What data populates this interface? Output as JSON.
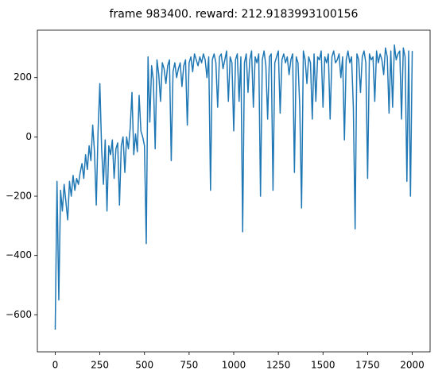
{
  "chart_data": {
    "type": "line",
    "title": "frame 983400. reward: 212.9183993100156",
    "x": [
      0,
      10,
      20,
      30,
      40,
      50,
      60,
      70,
      80,
      90,
      100,
      110,
      120,
      130,
      140,
      150,
      160,
      170,
      180,
      190,
      200,
      210,
      220,
      230,
      240,
      250,
      260,
      270,
      280,
      290,
      300,
      310,
      320,
      330,
      340,
      350,
      360,
      370,
      380,
      390,
      400,
      410,
      420,
      430,
      440,
      450,
      460,
      470,
      480,
      490,
      500,
      510,
      520,
      530,
      540,
      550,
      560,
      570,
      580,
      590,
      600,
      610,
      620,
      630,
      640,
      650,
      660,
      670,
      680,
      690,
      700,
      710,
      720,
      730,
      740,
      750,
      760,
      770,
      780,
      790,
      800,
      810,
      820,
      830,
      840,
      850,
      860,
      870,
      880,
      890,
      900,
      910,
      920,
      930,
      940,
      950,
      960,
      970,
      980,
      990,
      1000,
      1010,
      1020,
      1030,
      1040,
      1050,
      1060,
      1070,
      1080,
      1090,
      1100,
      1110,
      1120,
      1130,
      1140,
      1150,
      1160,
      1170,
      1180,
      1190,
      1200,
      1210,
      1220,
      1230,
      1240,
      1250,
      1260,
      1270,
      1280,
      1290,
      1300,
      1310,
      1320,
      1330,
      1340,
      1350,
      1360,
      1370,
      1380,
      1390,
      1400,
      1410,
      1420,
      1430,
      1440,
      1450,
      1460,
      1470,
      1480,
      1490,
      1500,
      1510,
      1520,
      1530,
      1540,
      1550,
      1560,
      1570,
      1580,
      1590,
      1600,
      1610,
      1620,
      1630,
      1640,
      1650,
      1660,
      1670,
      1680,
      1690,
      1700,
      1710,
      1720,
      1730,
      1740,
      1750,
      1760,
      1770,
      1780,
      1790,
      1800,
      1810,
      1820,
      1830,
      1840,
      1850,
      1860,
      1870,
      1880,
      1890,
      1900,
      1910,
      1920,
      1930,
      1940,
      1950,
      1960,
      1970,
      1980,
      1990,
      2000
    ],
    "series": [
      {
        "color": "#1f77b4",
        "values": [
          -650,
          -150,
          -550,
          -180,
          -250,
          -160,
          -220,
          -280,
          -150,
          -200,
          -130,
          -180,
          -140,
          -160,
          -120,
          -90,
          -140,
          -60,
          -110,
          -30,
          -80,
          40,
          -50,
          -230,
          20,
          180,
          -40,
          -160,
          -10,
          -250,
          -30,
          -60,
          -10,
          -140,
          -40,
          -20,
          -230,
          -30,
          0,
          -120,
          0,
          -40,
          30,
          150,
          -60,
          10,
          -50,
          140,
          20,
          0,
          -30,
          -360,
          270,
          50,
          240,
          190,
          -40,
          260,
          210,
          120,
          250,
          230,
          180,
          240,
          260,
          -80,
          220,
          250,
          200,
          230,
          250,
          170,
          240,
          260,
          40,
          250,
          270,
          220,
          280,
          260,
          240,
          270,
          250,
          280,
          260,
          200,
          270,
          -180,
          260,
          280,
          250,
          100,
          270,
          280,
          230,
          260,
          290,
          120,
          270,
          250,
          20,
          260,
          280,
          120,
          270,
          -320,
          250,
          280,
          150,
          260,
          290,
          100,
          270,
          250,
          280,
          -200,
          260,
          290,
          240,
          60,
          270,
          280,
          -180,
          250,
          270,
          290,
          80,
          260,
          280,
          250,
          270,
          210,
          260,
          280,
          -120,
          270,
          250,
          100,
          -240,
          290,
          260,
          180,
          270,
          250,
          60,
          280,
          120,
          270,
          260,
          290,
          100,
          270,
          250,
          280,
          60,
          270,
          290,
          250,
          260,
          280,
          200,
          270,
          -10,
          260,
          290,
          250,
          270,
          100,
          -310,
          280,
          260,
          150,
          270,
          290,
          250,
          -140,
          280,
          260,
          270,
          120,
          290,
          250,
          280,
          260,
          210,
          300,
          270,
          80,
          290,
          100,
          310,
          260,
          280,
          290,
          60,
          300,
          270,
          -150,
          290,
          -200,
          290
        ]
      }
    ],
    "xlim": [
      -100,
      2100
    ],
    "ylim": [
      -725,
      360
    ],
    "xticks": [
      0,
      250,
      500,
      750,
      1000,
      1250,
      1500,
      1750,
      2000
    ],
    "yticks": [
      {
        "value": -600,
        "label": "−600"
      },
      {
        "value": -400,
        "label": "−400"
      },
      {
        "value": -200,
        "label": "−200"
      },
      0,
      200
    ]
  }
}
